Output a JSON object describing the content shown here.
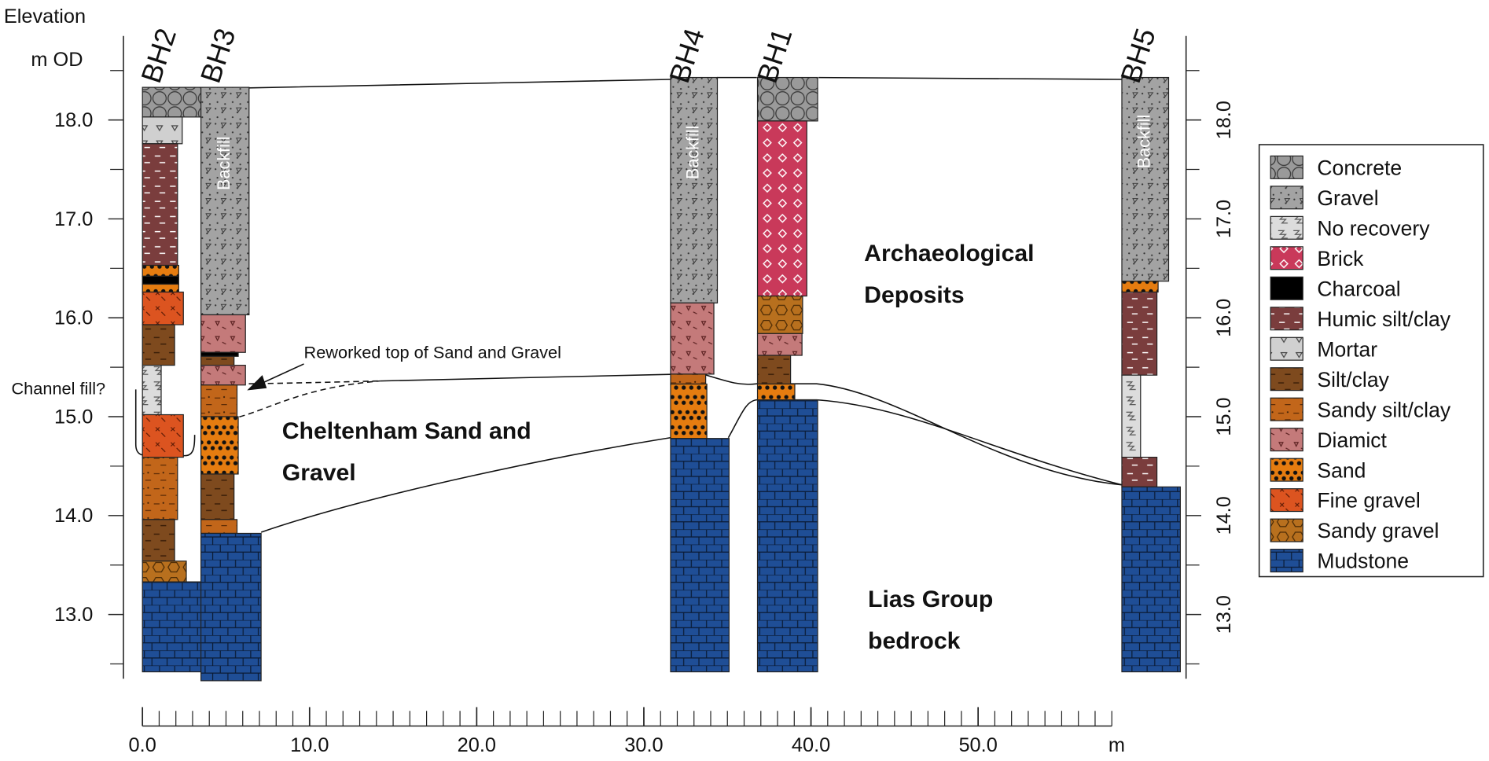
{
  "chart_data": {
    "type": "borehole-log",
    "ylabel": "Elevation",
    "yunit": "m OD",
    "xunit": "m",
    "ylim": [
      12.35,
      18.85
    ],
    "yticks": [
      {
        "value": 13,
        "label": "13.0"
      },
      {
        "value": 14,
        "label": "14.0"
      },
      {
        "value": 15,
        "label": "15.0"
      },
      {
        "value": 16,
        "label": "16.0"
      },
      {
        "value": 17,
        "label": "17.0"
      },
      {
        "value": 18,
        "label": "18.0"
      }
    ],
    "yticks_minor": [
      12.5,
      13.5,
      14.5,
      15.5,
      16.5,
      17.5,
      18.5
    ],
    "y2lim": [
      12.35,
      18.85
    ],
    "y2ticks": [
      {
        "value": 13,
        "label": "13.0"
      },
      {
        "value": 14,
        "label": "14.0"
      },
      {
        "value": 15,
        "label": "15.0"
      },
      {
        "value": 16,
        "label": "16.0"
      },
      {
        "value": 17,
        "label": "17.0"
      },
      {
        "value": 18,
        "label": "18.0"
      }
    ],
    "y2ticks_minor": [
      12.5,
      13.5,
      14.5,
      15.5,
      16.5,
      17.5,
      18.5
    ],
    "xlim": [
      0,
      62.5
    ],
    "xticks": [
      {
        "value": 0,
        "label": "0.0"
      },
      {
        "value": 10,
        "label": "10.0"
      },
      {
        "value": 20,
        "label": "20.0"
      },
      {
        "value": 30,
        "label": "30.0"
      },
      {
        "value": 40,
        "label": "40.0"
      },
      {
        "value": 50,
        "label": "50.0"
      }
    ],
    "xticks_minor": [
      0,
      1,
      2,
      3,
      4,
      5,
      6,
      7,
      8,
      9,
      10,
      11,
      12,
      13,
      14,
      15,
      16,
      17,
      18,
      19,
      20,
      21,
      22,
      23,
      24,
      25,
      26,
      27,
      28,
      29,
      30,
      31,
      32,
      33,
      34,
      35,
      36,
      37,
      38,
      39,
      40,
      41,
      42,
      43,
      44,
      45,
      46,
      47,
      48,
      49,
      50,
      51,
      52,
      53,
      54,
      55,
      56,
      57,
      58
    ],
    "legend": {
      "position": "right",
      "items": [
        {
          "name": "Concrete",
          "color": "#9a9a9a"
        },
        {
          "name": "Gravel",
          "color": "#a3a3a3"
        },
        {
          "name": "No recovery",
          "color": "#dcdcdc"
        },
        {
          "name": "Brick",
          "color": "#c9395a"
        },
        {
          "name": "Charcoal",
          "color": "#000000"
        },
        {
          "name": "Humic silt/clay",
          "color": "#7a3d3d"
        },
        {
          "name": "Mortar",
          "color": "#d0d0d0"
        },
        {
          "name": "Silt/clay",
          "color": "#7e4a1e"
        },
        {
          "name": "Sandy silt/clay",
          "color": "#c2661a"
        },
        {
          "name": "Diamict",
          "color": "#c47a7a"
        },
        {
          "name": "Sand",
          "color": "#e57c10"
        },
        {
          "name": "Fine gravel",
          "color": "#dc5420"
        },
        {
          "name": "Sandy gravel",
          "color": "#b8701e"
        },
        {
          "name": "Mudstone",
          "color": "#1f4e96"
        }
      ]
    },
    "boreholes": [
      {
        "name": "BH2",
        "x": [
          0,
          3.5
        ],
        "layers": [
          {
            "material": "Concrete",
            "top": 18.33,
            "bottom": 18.03
          },
          {
            "material": "Mortar",
            "top": 18.03,
            "bottom": 17.76
          },
          {
            "material": "Humic silt/clay",
            "top": 17.76,
            "bottom": 16.53
          },
          {
            "material": "Sand",
            "top": 16.53,
            "bottom": 16.42
          },
          {
            "material": "Charcoal",
            "top": 16.42,
            "bottom": 16.34
          },
          {
            "material": "Sand",
            "top": 16.34,
            "bottom": 16.26
          },
          {
            "material": "Fine gravel",
            "top": 16.26,
            "bottom": 15.93
          },
          {
            "material": "Silt/clay",
            "top": 15.93,
            "bottom": 15.52
          },
          {
            "material": "No recovery",
            "top": 15.52,
            "bottom": 15.02
          },
          {
            "material": "Fine gravel",
            "top": 15.02,
            "bottom": 14.59
          },
          {
            "material": "Sandy silt/clay",
            "top": 14.59,
            "bottom": 13.96
          },
          {
            "material": "Silt/clay",
            "top": 13.96,
            "bottom": 13.54
          },
          {
            "material": "Sandy gravel",
            "top": 13.54,
            "bottom": 13.33
          },
          {
            "material": "Mudstone",
            "top": 13.33,
            "bottom": 12.42
          }
        ]
      },
      {
        "name": "BH3",
        "x": [
          3.5,
          7.1
        ],
        "layers": [
          {
            "material": "Gravel",
            "top": 18.33,
            "bottom": 16.03,
            "label": "Backfill"
          },
          {
            "material": "Diamict",
            "top": 16.03,
            "bottom": 15.65
          },
          {
            "material": "Charcoal",
            "top": 15.65,
            "bottom": 15.61
          },
          {
            "material": "Silt/clay",
            "top": 15.61,
            "bottom": 15.52
          },
          {
            "material": "Diamict",
            "top": 15.52,
            "bottom": 15.32
          },
          {
            "material": "Sandy silt/clay",
            "top": 15.32,
            "bottom": 15.0
          },
          {
            "material": "Sand",
            "top": 15.0,
            "bottom": 14.42
          },
          {
            "material": "Silt/clay",
            "top": 14.42,
            "bottom": 13.96
          },
          {
            "material": "Sandy silt/clay",
            "top": 13.96,
            "bottom": 13.82
          },
          {
            "material": "Mudstone",
            "top": 13.82,
            "bottom": 12.33
          }
        ]
      },
      {
        "name": "BH4",
        "x": [
          31.6,
          35.1
        ],
        "layers": [
          {
            "material": "Gravel",
            "top": 18.43,
            "bottom": 16.15,
            "label": "Backfill"
          },
          {
            "material": "Diamict",
            "top": 16.15,
            "bottom": 15.43
          },
          {
            "material": "Sandy silt/clay",
            "top": 15.43,
            "bottom": 15.33
          },
          {
            "material": "Sand",
            "top": 15.33,
            "bottom": 14.78
          },
          {
            "material": "Mudstone",
            "top": 14.78,
            "bottom": 12.42
          }
        ]
      },
      {
        "name": "BH1",
        "x": [
          36.8,
          40.4
        ],
        "layers": [
          {
            "material": "Concrete",
            "top": 18.43,
            "bottom": 17.99
          },
          {
            "material": "Brick",
            "top": 17.99,
            "bottom": 16.22
          },
          {
            "material": "Sandy gravel",
            "top": 16.22,
            "bottom": 15.84
          },
          {
            "material": "Diamict",
            "top": 15.84,
            "bottom": 15.62
          },
          {
            "material": "Silt/clay",
            "top": 15.62,
            "bottom": 15.33
          },
          {
            "material": "Sand",
            "top": 15.33,
            "bottom": 15.17
          },
          {
            "material": "Mudstone",
            "top": 15.17,
            "bottom": 12.42
          }
        ]
      },
      {
        "name": "BH5",
        "x": [
          58.6,
          62.1
        ],
        "layers": [
          {
            "material": "Gravel",
            "top": 18.43,
            "bottom": 16.37,
            "label": "Backfill"
          },
          {
            "material": "Sand",
            "top": 16.37,
            "bottom": 16.26
          },
          {
            "material": "Humic silt/clay",
            "top": 16.26,
            "bottom": 15.42
          },
          {
            "material": "No recovery",
            "top": 15.42,
            "bottom": 14.59
          },
          {
            "material": "Humic silt/clay",
            "top": 14.59,
            "bottom": 14.29
          },
          {
            "material": "Mudstone",
            "top": 14.29,
            "bottom": 12.42
          }
        ]
      }
    ],
    "annotations": [
      "Archaeological",
      "Deposits",
      "Cheltenham Sand and",
      "Gravel",
      "Lias Group",
      "bedrock",
      "Reworked top of Sand and Gravel",
      "Channel fill?"
    ]
  }
}
